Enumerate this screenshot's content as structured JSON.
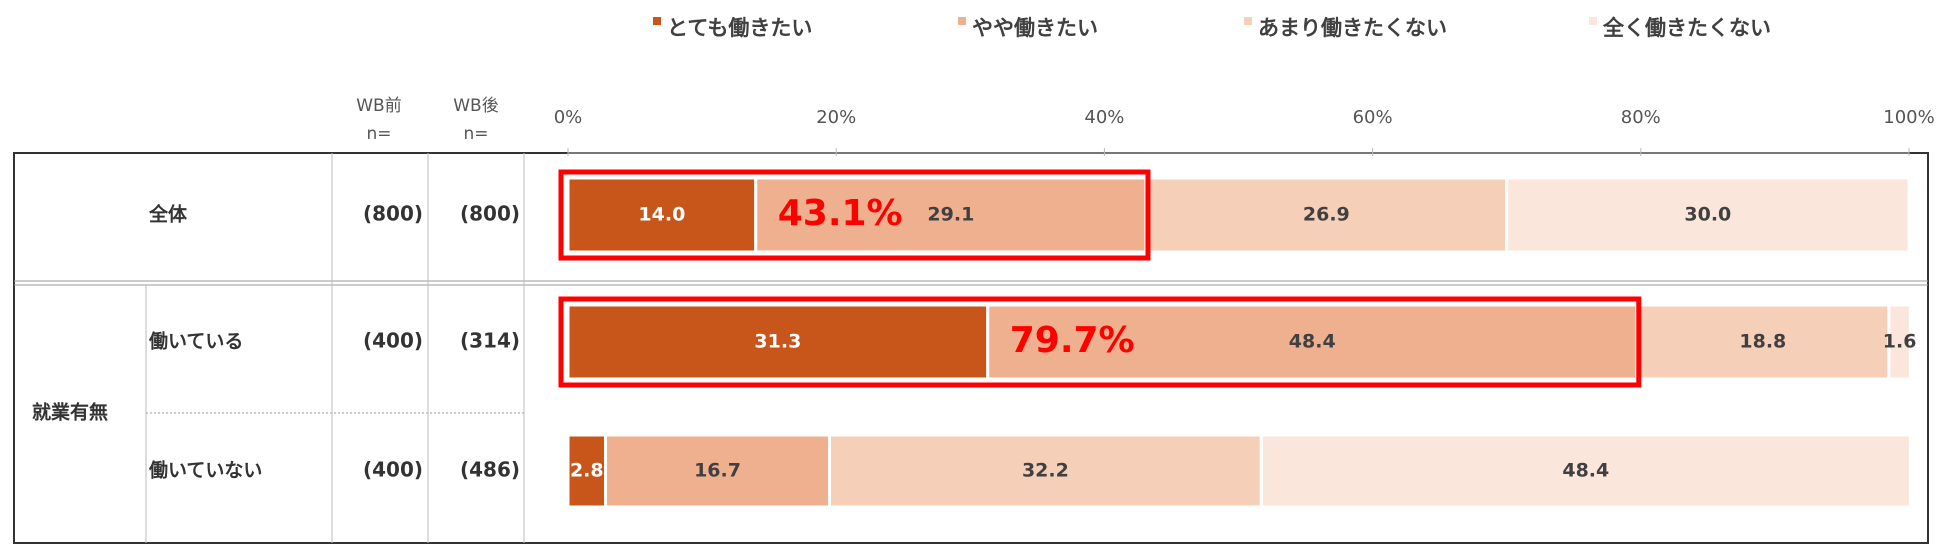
{
  "chart_data": {
    "type": "stacked-barh",
    "categories": [
      "全体",
      "働いている",
      "働いていない"
    ],
    "group_label": "就業有無",
    "columns": [
      {
        "title": "WB前",
        "subtitle": "n="
      },
      {
        "title": "WB後",
        "subtitle": "n="
      }
    ],
    "n_labels": [
      [
        "(800)",
        "(800)"
      ],
      [
        "(400)",
        "(314)"
      ],
      [
        "(400)",
        "(486)"
      ]
    ],
    "series": [
      {
        "name": "とても働きたい",
        "color": "#c8561b",
        "values": [
          14.0,
          31.3,
          2.8
        ],
        "value_labels": [
          "14.0",
          "31.3",
          "2.8"
        ]
      },
      {
        "name": "やや働きたい",
        "color": "#efb08f",
        "values": [
          29.1,
          48.4,
          16.7
        ],
        "value_labels": [
          "29.1",
          "48.4",
          "16.7"
        ]
      },
      {
        "name": "あまり働きたくない",
        "color": "#f5cfb8",
        "values": [
          26.9,
          18.8,
          32.2
        ],
        "value_labels": [
          "26.9",
          "18.8",
          "32.2"
        ]
      },
      {
        "name": "全く働きたくない",
        "color": "#fae6da",
        "values": [
          30.0,
          1.6,
          48.4
        ],
        "value_labels": [
          "30.0",
          "1.6",
          "48.4"
        ]
      }
    ],
    "xlim": [
      0,
      100
    ],
    "xticks": [
      {
        "value": 0,
        "label": "0%"
      },
      {
        "value": 20,
        "label": "20%"
      },
      {
        "value": 40,
        "label": "40%"
      },
      {
        "value": 60,
        "label": "60%"
      },
      {
        "value": 80,
        "label": "80%"
      },
      {
        "value": 100,
        "label": "100%"
      }
    ],
    "annotations": [
      {
        "category": 0,
        "value": 43.1,
        "label": "43.1%"
      },
      {
        "category": 1,
        "value": 79.7,
        "label": "79.7%"
      }
    ]
  }
}
